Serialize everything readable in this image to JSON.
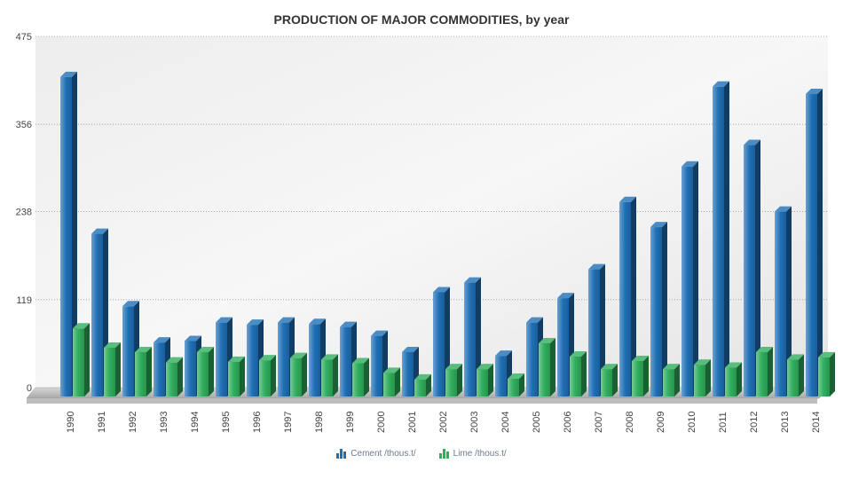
{
  "chart_data": {
    "type": "bar",
    "title": "PRODUCTION OF MAJOR COMMODITIES, by year",
    "xlabel": "",
    "ylabel": "",
    "ylim": [
      0,
      475
    ],
    "y_ticks": [
      "0",
      "119",
      "238",
      "356",
      "475"
    ],
    "grid": true,
    "legend_position": "bottom-center",
    "categories": [
      "1990",
      "1991",
      "1992",
      "1993",
      "1994",
      "1995",
      "1996",
      "1997",
      "1998",
      "1999",
      "2000",
      "2001",
      "2002",
      "2003",
      "2004",
      "2005",
      "2006",
      "2007",
      "2008",
      "2009",
      "2010",
      "2011",
      "2012",
      "2013",
      "2014"
    ],
    "series": [
      {
        "name": "Cement /thous.t/",
        "color": "#1f6fb5",
        "values": [
          432,
          220,
          122,
          73,
          75,
          100,
          97,
          100,
          98,
          94,
          82,
          60,
          141,
          154,
          55,
          100,
          133,
          172,
          263,
          229,
          311,
          419,
          340,
          250,
          409
        ]
      },
      {
        "name": "Lime /thous.t/",
        "color": "#2fae5c",
        "values": [
          92,
          66,
          60,
          46,
          60,
          47,
          49,
          52,
          50,
          45,
          32,
          23,
          37,
          37,
          24,
          72,
          54,
          37,
          48,
          37,
          43,
          39,
          60,
          50,
          53
        ]
      }
    ]
  }
}
